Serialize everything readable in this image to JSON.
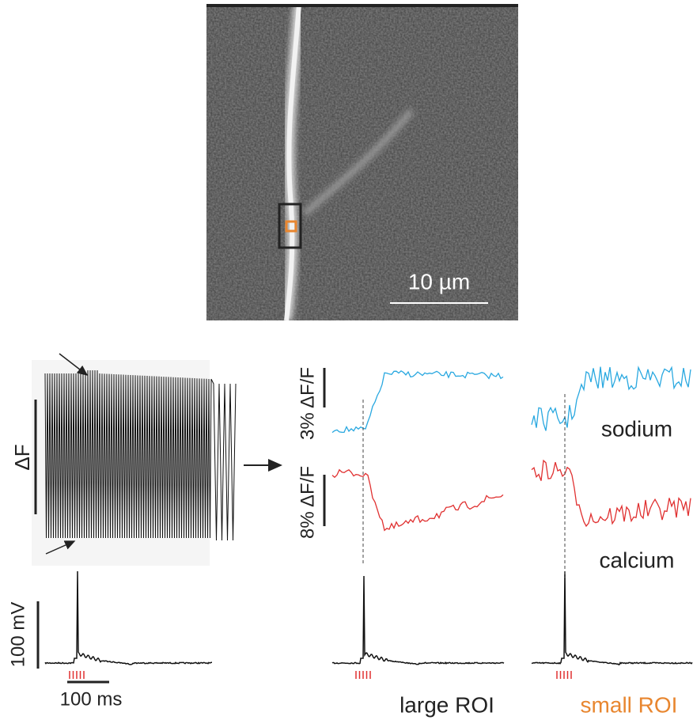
{
  "image": {
    "scale_bar_label": "10 µm"
  },
  "left_panel": {
    "delta_f_label": "ΔF",
    "voltage_scale_label": "100 mV",
    "time_scale_label": "100 ms"
  },
  "middle_panel": {
    "sodium_scale_label": "3% ΔF/F",
    "calcium_scale_label": "8% ΔF/F",
    "roi_label": "large ROI"
  },
  "right_panel": {
    "sodium_label": "sodium",
    "calcium_label": "calcium",
    "roi_label": "small ROI"
  }
}
